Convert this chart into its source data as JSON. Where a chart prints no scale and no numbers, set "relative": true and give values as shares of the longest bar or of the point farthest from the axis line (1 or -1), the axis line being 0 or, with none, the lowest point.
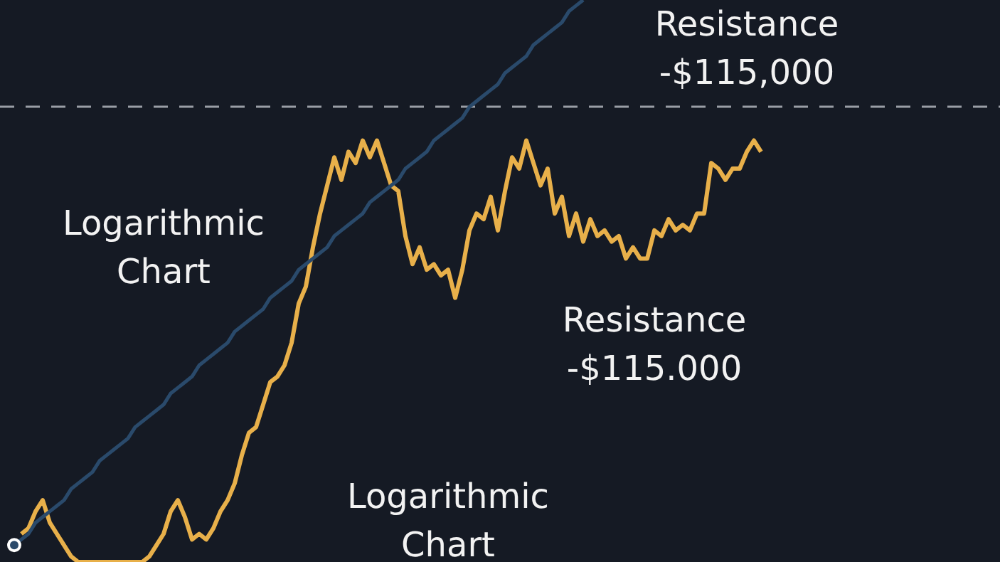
{
  "chart_data": {
    "type": "line",
    "relative": true,
    "categories": [
      null,
      null,
      null,
      null,
      null,
      null,
      null,
      null,
      null,
      null,
      null,
      null,
      null,
      null,
      null,
      null,
      null,
      null,
      null,
      null,
      null,
      null,
      null,
      null,
      null,
      null,
      null,
      null,
      null,
      null,
      null,
      null,
      null,
      null,
      null,
      null,
      null,
      null,
      null,
      null,
      null,
      null,
      null,
      null,
      null,
      null,
      null,
      null,
      null,
      null,
      null,
      null,
      null,
      null,
      null,
      null,
      null,
      null,
      null,
      null,
      null,
      null,
      null,
      null,
      null,
      null,
      null,
      null,
      null,
      null,
      null,
      null,
      null,
      null,
      null,
      null,
      null,
      null,
      null,
      null,
      null,
      null,
      null,
      null,
      null,
      null,
      null,
      null,
      null,
      null,
      null,
      null,
      null,
      null,
      null,
      null,
      null,
      null,
      null,
      null,
      null,
      null,
      null,
      null,
      null,
      null
    ],
    "series": [
      {
        "color": "#e8b04a",
        "values": [
          null,
          0.05,
          0.06,
          0.09,
          0.11,
          0.07,
          0.05,
          0.03,
          0.01,
          0,
          0,
          0,
          0,
          0,
          0,
          0,
          0,
          0,
          0,
          0.01,
          0.03,
          0.05,
          0.09,
          0.11,
          0.08,
          0.04,
          0.05,
          0.04,
          0.06,
          0.09,
          0.11,
          0.14,
          0.19,
          0.23,
          0.24,
          0.28,
          0.32,
          0.33,
          0.35,
          0.39,
          0.46,
          0.49,
          0.56,
          0.62,
          0.67,
          0.72,
          0.68,
          0.73,
          0.71,
          0.75,
          0.72,
          0.75,
          0.71,
          0.67,
          0.66,
          0.58,
          0.53,
          0.56,
          0.52,
          0.53,
          0.51,
          0.52,
          0.47,
          0.52,
          0.59,
          0.62,
          0.61,
          0.65,
          0.59,
          0.66,
          0.72,
          0.7,
          0.75,
          0.71,
          0.67,
          0.7,
          0.62,
          0.65,
          0.58,
          0.62,
          0.57,
          0.61,
          0.58,
          0.59,
          0.57,
          0.58,
          0.54,
          0.56,
          0.54,
          0.54,
          0.59,
          0.58,
          0.61,
          0.59,
          0.6,
          0.59,
          0.62,
          0.62,
          0.71,
          0.7,
          0.68,
          0.7,
          0.7,
          0.73,
          0.75,
          0.73
        ]
      },
      {
        "type": "line",
        "color": "#2a4a6b",
        "values": [
          0.03,
          0.04,
          0.05,
          0.07,
          0.08,
          0.09,
          0.1,
          0.11,
          0.13,
          0.14,
          0.15,
          0.16,
          0.18,
          0.19,
          0.2,
          0.21,
          0.22,
          0.24,
          0.25,
          0.26,
          0.27,
          0.28,
          0.3,
          0.31,
          0.32,
          0.33,
          0.35,
          0.36,
          0.37,
          0.38,
          0.39,
          0.41,
          0.42,
          0.43,
          0.44,
          0.45,
          0.47,
          0.48,
          0.49,
          0.5,
          0.52,
          0.53,
          0.54,
          0.55,
          0.56,
          0.58,
          0.59,
          0.6,
          0.61,
          0.62,
          0.64,
          0.65,
          0.66,
          0.67,
          0.68,
          0.7,
          0.71,
          0.72,
          0.73,
          0.75,
          0.76,
          0.77,
          0.78,
          0.79,
          0.81,
          0.82,
          0.83,
          0.84,
          0.85,
          0.87,
          0.88,
          0.89,
          0.9,
          0.92,
          0.93,
          0.94,
          0.95,
          0.96,
          0.98,
          0.99,
          1,
          null,
          null,
          null,
          null,
          null,
          null,
          null,
          null,
          null,
          null,
          null,
          null,
          null,
          null,
          null,
          null,
          null,
          null,
          null,
          null,
          null,
          null,
          null,
          null,
          null
        ]
      }
    ],
    "ref_lines": [
      {
        "axis": "y",
        "value": 0.81,
        "color": "#9a9ea6",
        "line_style": "dashed"
      }
    ],
    "annotations": [
      "Resistance -$115,000",
      "Logarithmic Chart",
      "Resistance -$115.000",
      "Logarithmic Chart"
    ]
  }
}
